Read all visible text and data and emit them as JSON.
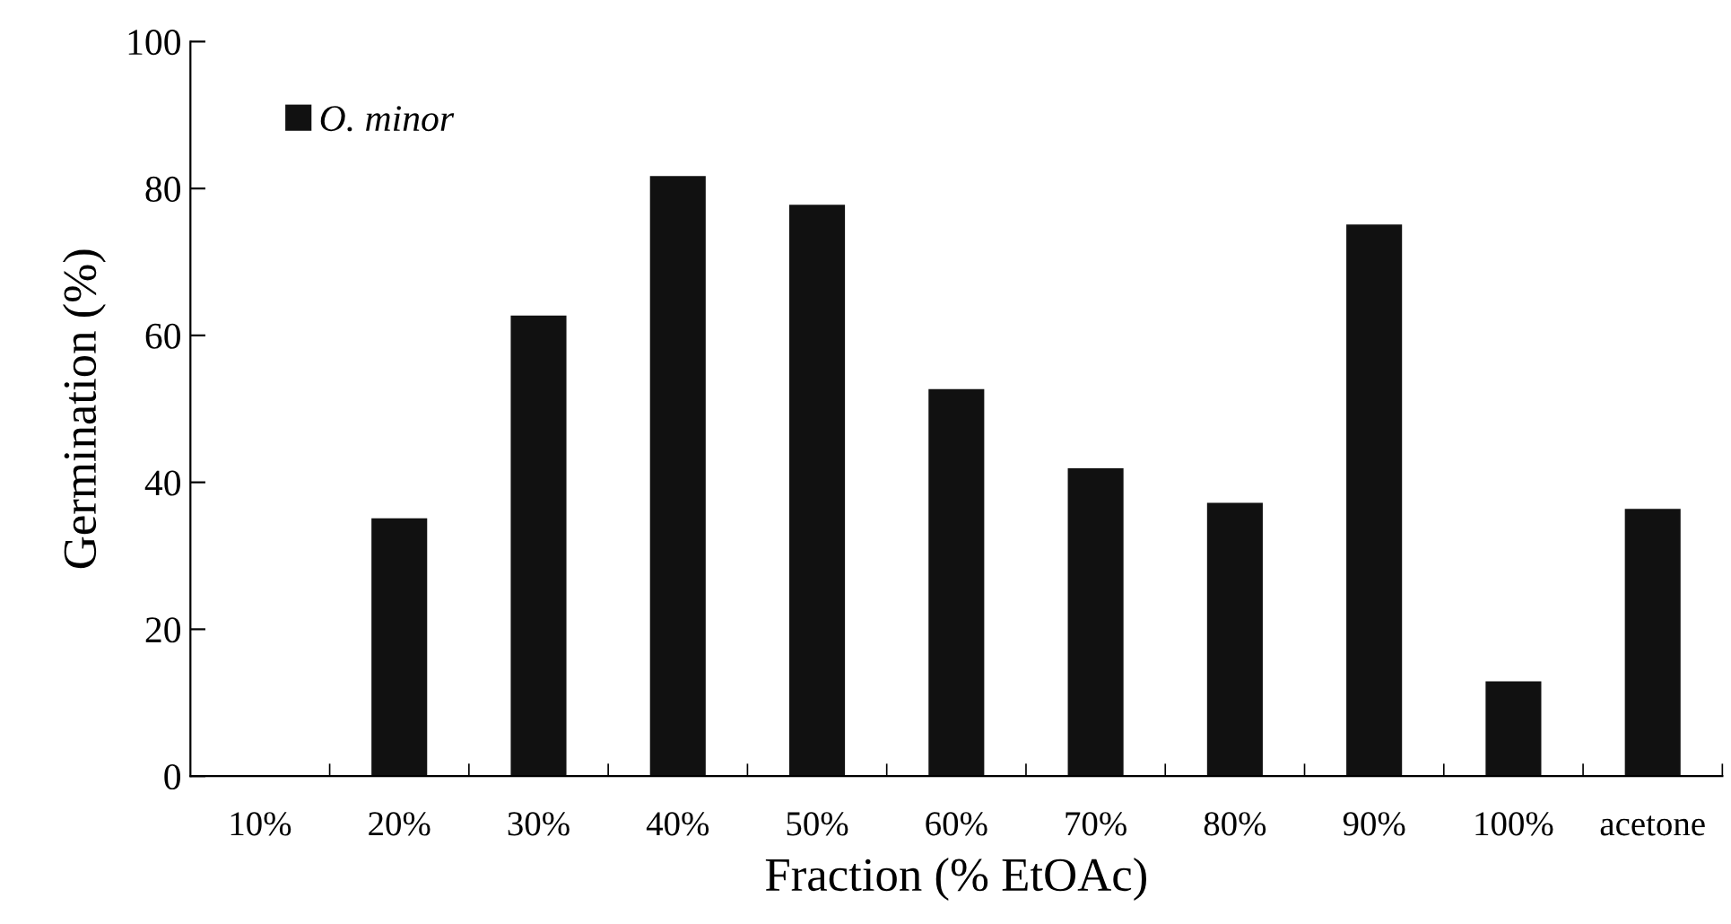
{
  "chart_data": {
    "type": "bar",
    "xlabel": "Fraction (% EtOAc)",
    "ylabel": "Germination (%)",
    "categories": [
      "10%",
      "20%",
      "30%",
      "40%",
      "50%",
      "60%",
      "70%",
      "80%",
      "90%",
      "100%",
      "acetone"
    ],
    "series": [
      {
        "name": "O. minor",
        "color": "#111111",
        "values": [
          0,
          35.1,
          62.7,
          81.7,
          77.8,
          52.7,
          41.9,
          37.2,
          75.1,
          12.9,
          36.4
        ]
      }
    ],
    "ylim": [
      0,
      100
    ],
    "yticks": [
      0,
      20,
      40,
      60,
      80,
      100
    ],
    "grid": false,
    "legend": "top left"
  }
}
